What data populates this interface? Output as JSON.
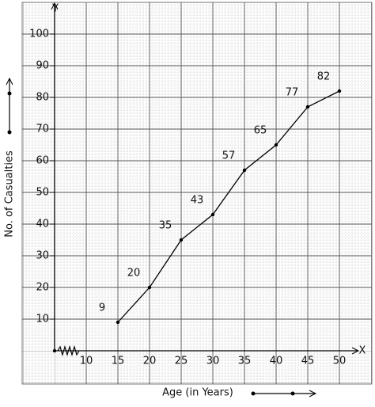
{
  "chart_data": {
    "type": "line",
    "x_label": "Age (in Years)",
    "y_label": "No. of Casualties",
    "x_axis_name": "X",
    "y_axis_name": "Y",
    "x": [
      15,
      20,
      25,
      30,
      35,
      40,
      45,
      50
    ],
    "values": [
      9,
      20,
      35,
      43,
      57,
      65,
      77,
      82
    ],
    "color": "#000000",
    "xlim": [
      5,
      52.5
    ],
    "ylim": [
      0,
      108.75
    ],
    "xticks": [
      10,
      15,
      20,
      25,
      30,
      35,
      40,
      45,
      50
    ],
    "yticks": [
      10,
      20,
      30,
      40,
      50,
      60,
      70,
      80,
      90,
      100
    ],
    "grid": true
  }
}
